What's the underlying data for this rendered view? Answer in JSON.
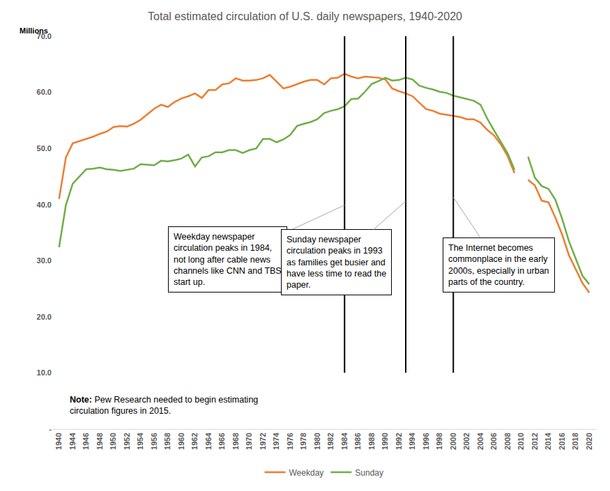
{
  "chart_data": {
    "type": "line",
    "title": "Total estimated circulation of U.S. daily newspapers, 1940-2020",
    "ylabel": "Millions",
    "categories": [
      "1940",
      null,
      "1944",
      null,
      "1946",
      null,
      "1948",
      null,
      "1950",
      null,
      "1952",
      null,
      "1954",
      null,
      "1956",
      null,
      "1958",
      null,
      "1960",
      null,
      "1962",
      null,
      "1964",
      null,
      "1966",
      null,
      "1968",
      null,
      "1970",
      null,
      "1972",
      null,
      "1974",
      null,
      "1976",
      null,
      "1978",
      null,
      "1980",
      null,
      "1982",
      null,
      "1984",
      null,
      "1986",
      null,
      "1988",
      null,
      "1990",
      null,
      "1992",
      null,
      "1994",
      null,
      "1996",
      null,
      "1998",
      null,
      "2000",
      null,
      "2002",
      null,
      "2004",
      null,
      "2006",
      null,
      "2008",
      null,
      "2010",
      null,
      "2012",
      null,
      "2014",
      null,
      "2016",
      null,
      "2018",
      null,
      "2020"
    ],
    "series": [
      {
        "name": "Weekday",
        "color": "#ED7D31",
        "values": [
          41.0,
          48.4,
          50.9,
          51.3,
          51.7,
          52.1,
          52.6,
          53.0,
          53.8,
          54.0,
          53.9,
          54.4,
          55.1,
          56.1,
          57.1,
          57.8,
          57.4,
          58.3,
          58.9,
          59.3,
          59.8,
          59.0,
          60.4,
          60.4,
          61.4,
          61.6,
          62.5,
          62.1,
          62.1,
          62.2,
          62.5,
          63.1,
          61.9,
          60.7,
          61.0,
          61.5,
          61.9,
          62.2,
          62.2,
          61.4,
          62.5,
          62.6,
          63.3,
          62.8,
          62.5,
          62.8,
          62.7,
          62.6,
          62.3,
          60.7,
          60.2,
          59.8,
          59.3,
          58.2,
          57.0,
          56.7,
          56.2,
          56.0,
          55.8,
          55.6,
          55.2,
          55.2,
          54.6,
          53.3,
          52.3,
          50.7,
          48.6,
          45.6,
          null,
          44.4,
          43.4,
          40.7,
          40.4,
          37.7,
          34.7,
          31.0,
          28.6,
          26.0,
          24.3
        ]
      },
      {
        "name": "Sunday",
        "color": "#70AD47",
        "values": [
          32.4,
          39.9,
          43.7,
          45.0,
          46.3,
          46.4,
          46.6,
          46.3,
          46.2,
          46.0,
          46.2,
          46.4,
          47.2,
          47.1,
          47.0,
          47.8,
          47.7,
          47.9,
          48.2,
          48.9,
          46.8,
          48.4,
          48.6,
          49.3,
          49.3,
          49.7,
          49.7,
          49.2,
          49.7,
          50.0,
          51.7,
          51.7,
          51.1,
          51.6,
          52.4,
          54.0,
          54.4,
          54.7,
          55.2,
          56.3,
          56.7,
          57.0,
          57.5,
          58.8,
          58.9,
          60.1,
          61.5,
          62.0,
          62.6,
          62.1,
          62.2,
          62.6,
          62.3,
          61.2,
          60.8,
          60.5,
          60.1,
          59.9,
          59.4,
          59.1,
          58.8,
          58.5,
          57.8,
          55.3,
          53.2,
          51.2,
          49.1,
          46.2,
          null,
          48.5,
          44.8,
          43.3,
          42.8,
          40.9,
          37.5,
          33.5,
          30.5,
          27.3,
          25.8
        ]
      }
    ],
    "ylim": [
      0,
      70
    ],
    "yticks": [
      {
        "value": 0,
        "label": "-"
      },
      {
        "value": 10,
        "label": "10.0"
      },
      {
        "value": 20,
        "label": "20.0"
      },
      {
        "value": 30,
        "label": "30.0"
      },
      {
        "value": 40,
        "label": "40.0"
      },
      {
        "value": 50,
        "label": "50.0"
      },
      {
        "value": 60,
        "label": "60.0"
      },
      {
        "value": 70,
        "label": "70.0"
      }
    ],
    "grid": false,
    "legend": "bottom",
    "annotations": [
      {
        "text": "Weekday newspaper circulation peaks in 1984, not long after cable news channels like CNN and TBS start up.",
        "line_at": 1984
      },
      {
        "text": "Sunday newspaper circulation peaks in 1993 as families get busier and have less time to read the paper.",
        "line_at": 1993
      },
      {
        "text": "The Internet becomes commonplace in the early 2000s, especially in urban parts of the country.",
        "line_at": 2000
      }
    ],
    "note": {
      "label": "Note:",
      "text": "Pew Research needed to begin estimating circulation figures in 2015."
    }
  }
}
